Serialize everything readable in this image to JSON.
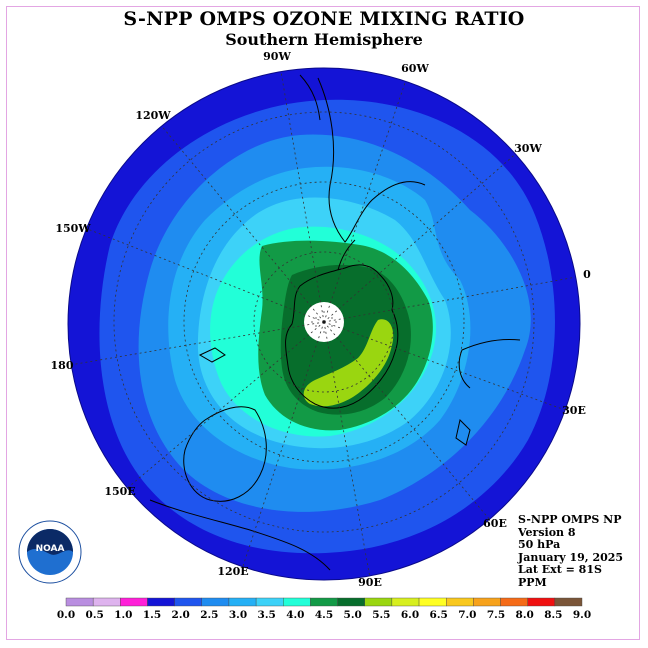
{
  "title": "S-NPP OMPS OZONE MIXING RATIO",
  "subtitle": "Southern Hemisphere",
  "info": {
    "instrument": "S-NPP OMPS NP",
    "version": "Version 8",
    "pressure": "50 hPa",
    "date": "January 19, 2025",
    "lat_ext": "Lat Ext = 81S",
    "units": "PPM"
  },
  "longitude_labels": [
    "90W",
    "60W",
    "30W",
    "0",
    "30E",
    "60E",
    "90E",
    "120E",
    "150E",
    "180",
    "150W",
    "120W"
  ],
  "logo_text": "NOAA",
  "colorbar": {
    "ticks": [
      "0.0",
      "0.5",
      "1.0",
      "1.5",
      "2.0",
      "2.5",
      "3.0",
      "3.5",
      "4.0",
      "4.5",
      "5.0",
      "5.5",
      "6.0",
      "6.5",
      "7.0",
      "7.5",
      "8.0",
      "8.5",
      "9.0"
    ],
    "colors": [
      "#b98ee0",
      "#deb3ee",
      "#ff1fd8",
      "#1414d6",
      "#1f55ee",
      "#1f8cf0",
      "#25b0f5",
      "#3dd2f8",
      "#22ffd8",
      "#129a46",
      "#076e2c",
      "#9ad610",
      "#d7ef1f",
      "#ffff24",
      "#f9c81e",
      "#f7a21b",
      "#f56b18",
      "#f01010",
      "#7a5538"
    ]
  }
}
